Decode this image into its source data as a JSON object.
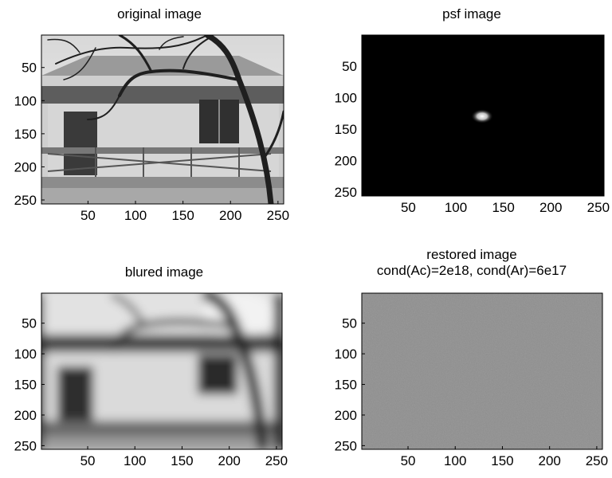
{
  "figure": {
    "panels": [
      {
        "title_lines": [
          "original image"
        ],
        "image_kind": "house-sharp",
        "x_ticks": [
          "50",
          "100",
          "150",
          "200",
          "250"
        ],
        "y_ticks": [
          "50",
          "100",
          "150",
          "200",
          "250"
        ]
      },
      {
        "title_lines": [
          "psf image"
        ],
        "image_kind": "psf",
        "x_ticks": [
          "50",
          "100",
          "150",
          "200",
          "250"
        ],
        "y_ticks": [
          "50",
          "100",
          "150",
          "200",
          "250"
        ]
      },
      {
        "title_lines": [
          "blured image"
        ],
        "image_kind": "house-blurred",
        "x_ticks": [
          "50",
          "100",
          "150",
          "200",
          "250"
        ],
        "y_ticks": [
          "50",
          "100",
          "150",
          "200",
          "250"
        ]
      },
      {
        "title_lines": [
          "restored image",
          "cond(Ac)=2e18, cond(Ar)=6e17"
        ],
        "image_kind": "noise",
        "x_ticks": [
          "50",
          "100",
          "150",
          "200",
          "250"
        ],
        "y_ticks": [
          "50",
          "100",
          "150",
          "200",
          "250"
        ]
      }
    ]
  },
  "chart_data": [
    {
      "type": "heatmap",
      "title": "original image",
      "colormap": "gray",
      "xlim": [
        1,
        256
      ],
      "ylim": [
        1,
        256
      ],
      "x_ticks": [
        50,
        100,
        150,
        200,
        250
      ],
      "y_ticks": [
        50,
        100,
        150,
        200,
        250
      ],
      "y_direction": "reversed",
      "content": "grayscale photo of a house with bare tree branches"
    },
    {
      "type": "heatmap",
      "title": "psf image",
      "colormap": "gray",
      "xlim": [
        1,
        256
      ],
      "ylim": [
        1,
        256
      ],
      "x_ticks": [
        50,
        100,
        150,
        200,
        250
      ],
      "y_ticks": [
        50,
        100,
        150,
        200,
        250
      ],
      "y_direction": "reversed",
      "psf_center": [
        129,
        129
      ],
      "background": "black"
    },
    {
      "type": "heatmap",
      "title": "blured image",
      "colormap": "gray",
      "xlim": [
        1,
        256
      ],
      "ylim": [
        1,
        256
      ],
      "x_ticks": [
        50,
        100,
        150,
        200,
        250
      ],
      "y_ticks": [
        50,
        100,
        150,
        200,
        250
      ],
      "y_direction": "reversed"
    },
    {
      "type": "heatmap",
      "title": "restored image cond(Ac)=2e18, cond(Ar)=6e17",
      "colormap": "gray",
      "xlim": [
        1,
        256
      ],
      "ylim": [
        1,
        256
      ],
      "x_ticks": [
        50,
        100,
        150,
        200,
        250
      ],
      "y_ticks": [
        50,
        100,
        150,
        200,
        250
      ],
      "y_direction": "reversed",
      "content": "uniform gray high-frequency noise"
    }
  ]
}
